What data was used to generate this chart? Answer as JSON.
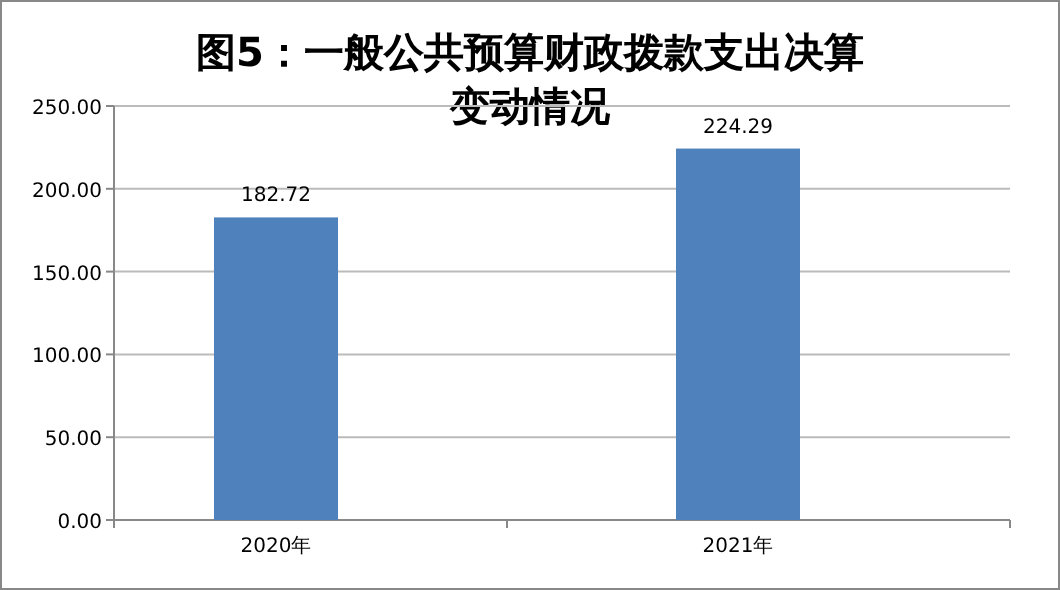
{
  "chart_data": {
    "type": "bar",
    "title": "图5：一般公共预算财政拨款支出决算变动情况",
    "categories": [
      "2020年",
      "2021年"
    ],
    "values": [
      182.72,
      224.29
    ],
    "color": "#4f81bd",
    "ylim": [
      0,
      250
    ],
    "yticks": [
      {
        "value": 0,
        "label": "0.00"
      },
      {
        "value": 50,
        "label": "50.00"
      },
      {
        "value": 100,
        "label": "100.00"
      },
      {
        "value": 150,
        "label": "150.00"
      },
      {
        "value": 200,
        "label": "200.00"
      },
      {
        "value": 250,
        "label": "250.00"
      }
    ],
    "grid": "y",
    "data_labels": true
  }
}
